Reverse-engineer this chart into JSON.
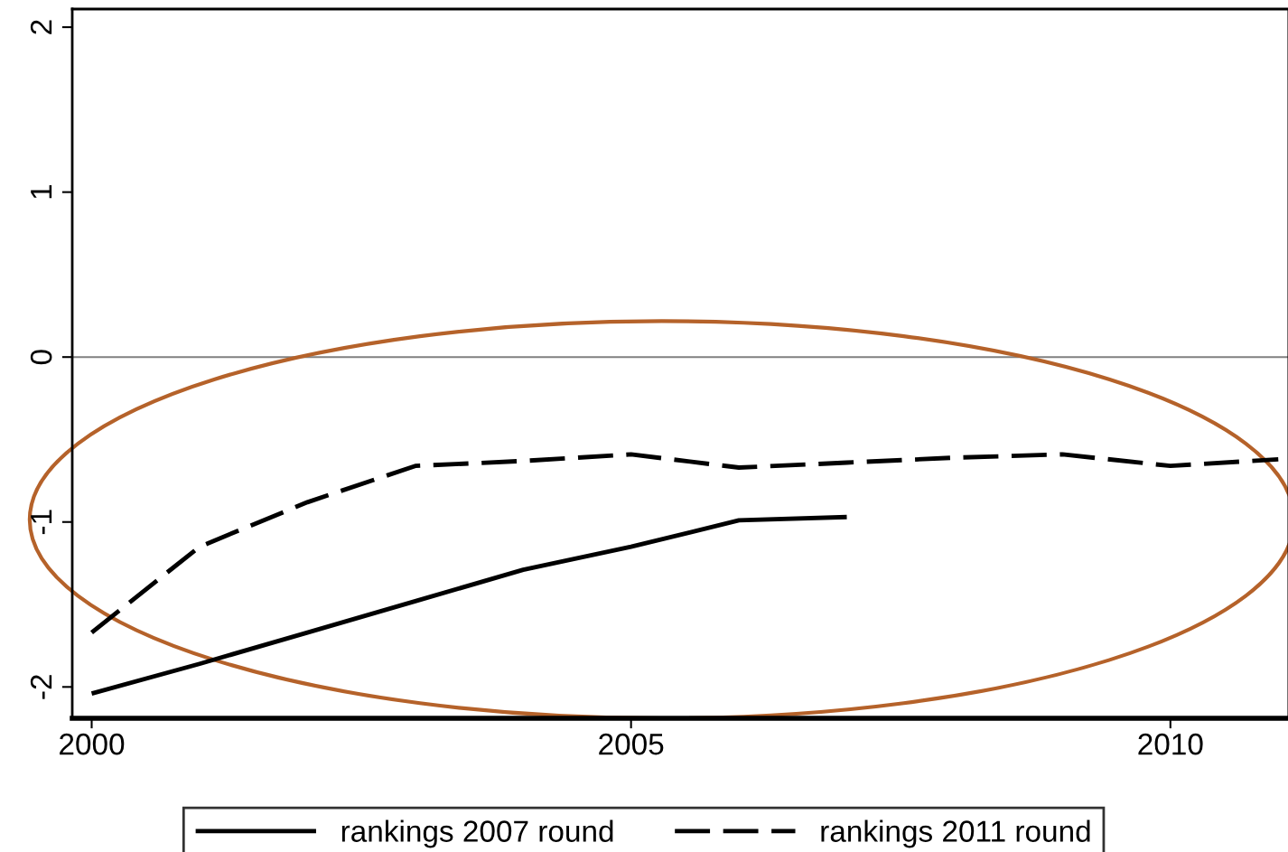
{
  "chart_data": {
    "type": "line",
    "x": [
      2000,
      2001,
      2002,
      2003,
      2004,
      2005,
      2006,
      2007,
      2008,
      2009,
      2010,
      2011
    ],
    "series": [
      {
        "name": "rankings 2007 round",
        "color": "#000000",
        "line_style": "solid",
        "values": [
          -2.04,
          -1.86,
          -1.67,
          -1.48,
          -1.29,
          -1.15,
          -0.99,
          -0.97,
          null,
          null,
          null,
          null
        ]
      },
      {
        "name": "rankings 2011 round",
        "color": "#000000",
        "line_style": "dashed",
        "values": [
          -1.67,
          -1.15,
          -0.88,
          -0.66,
          -0.63,
          -0.59,
          -0.67,
          -0.64,
          -0.61,
          -0.59,
          -0.66,
          -0.62
        ]
      }
    ],
    "xlim": [
      1999.82,
      2011.09
    ],
    "xticks": [
      2000,
      2005,
      2010
    ],
    "ylim": [
      -2.19,
      2.11
    ],
    "yticks": [
      -2,
      -1,
      0,
      1,
      2
    ],
    "ref_lines": [
      {
        "axis": "y",
        "value": 0,
        "color": "#808080"
      }
    ],
    "legend": "bottom",
    "grid": false,
    "marker": "none"
  }
}
